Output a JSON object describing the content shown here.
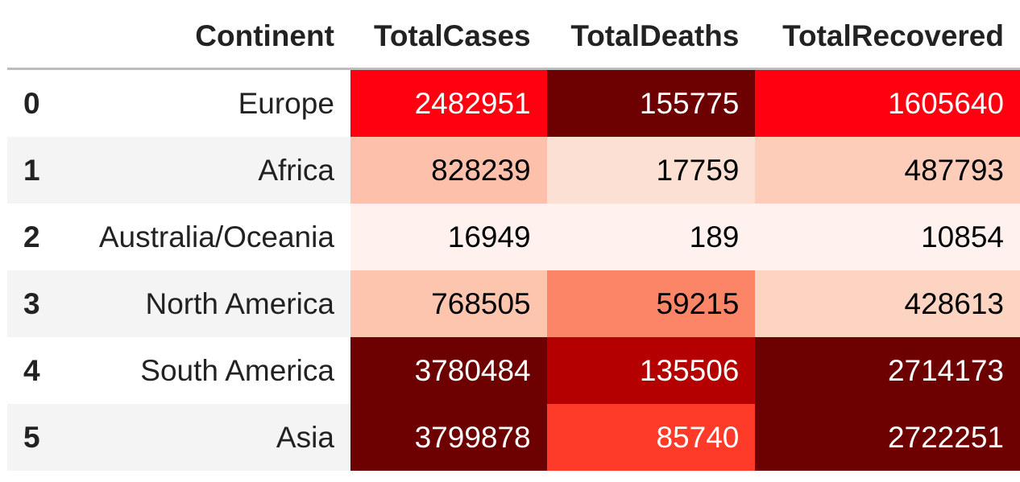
{
  "table": {
    "columns": [
      "Continent",
      "TotalCases",
      "TotalDeaths",
      "TotalRecovered"
    ]
  },
  "colors": {
    "header_rule": "#bdbdbd",
    "stripe": "#f4f4f4",
    "text_dark": "#000000",
    "text_light": "#ffffff"
  },
  "chart_data": {
    "type": "heatmap",
    "index": [
      "0",
      "1",
      "2",
      "3",
      "4",
      "5"
    ],
    "rows": [
      "Europe",
      "Africa",
      "Australia/Oceania",
      "North America",
      "South America",
      "Asia"
    ],
    "columns": [
      "TotalCases",
      "TotalDeaths",
      "TotalRecovered"
    ],
    "values": [
      [
        2482951,
        155775,
        1605640
      ],
      [
        828239,
        17759,
        487793
      ],
      [
        16949,
        189,
        10854
      ],
      [
        768505,
        59215,
        428613
      ],
      [
        3780484,
        135506,
        2714173
      ],
      [
        3799878,
        85740,
        2722251
      ]
    ],
    "colormap": "Reds",
    "cell_colors": [
      [
        "#fe000f",
        "#6d0000",
        "#fe000f"
      ],
      [
        "#fdc1ab",
        "#fde0d4",
        "#fdcdb9"
      ],
      [
        "#fff2ee",
        "#fff2ee",
        "#fff2ee"
      ],
      [
        "#fdc4ae",
        "#fc8568",
        "#fdd4c2"
      ],
      [
        "#6d0000",
        "#b40000",
        "#6d0000"
      ],
      [
        "#6d0000",
        "#fe3b28",
        "#6d0000"
      ]
    ],
    "text_colors": [
      [
        "#ffffff",
        "#ffffff",
        "#ffffff"
      ],
      [
        "#000000",
        "#000000",
        "#000000"
      ],
      [
        "#000000",
        "#000000",
        "#000000"
      ],
      [
        "#000000",
        "#000000",
        "#000000"
      ],
      [
        "#ffffff",
        "#ffffff",
        "#ffffff"
      ],
      [
        "#ffffff",
        "#ffffff",
        "#ffffff"
      ]
    ]
  }
}
